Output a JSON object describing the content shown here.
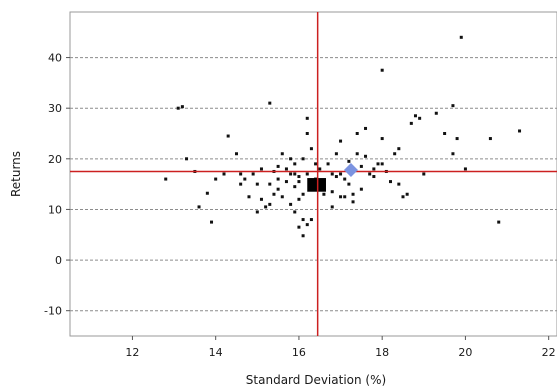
{
  "chart_data": {
    "type": "scatter",
    "title": "",
    "xlabel": "Standard Deviation (%)",
    "ylabel": "Returns",
    "xlim": [
      10.5,
      22.2
    ],
    "ylim": [
      -15,
      49
    ],
    "x_ticks": [
      12,
      14,
      16,
      18,
      20,
      22
    ],
    "y_ticks": [
      -10,
      0,
      10,
      20,
      30,
      40
    ],
    "grid": "horizontal-dashed",
    "legend": "none",
    "crosshair": {
      "x": 16.45,
      "y": 17.5,
      "color": "#cc2020"
    },
    "highlight_point": {
      "x": 17.25,
      "y": 17.8,
      "color": "#7b93e0"
    },
    "cluster_block": {
      "x_range": [
        16.2,
        16.65
      ],
      "y_range": [
        13.5,
        16.2
      ]
    },
    "series": [
      {
        "points": [
          [
            12.8,
            16
          ],
          [
            13.1,
            30
          ],
          [
            13.2,
            30.3
          ],
          [
            13.3,
            20
          ],
          [
            13.5,
            17.5
          ],
          [
            13.6,
            10.5
          ],
          [
            13.8,
            13.2
          ],
          [
            13.9,
            7.5
          ],
          [
            14.2,
            17
          ],
          [
            14.3,
            24.5
          ],
          [
            14.5,
            21
          ],
          [
            14.6,
            17
          ],
          [
            14.7,
            16
          ],
          [
            14.8,
            12.5
          ],
          [
            14.9,
            17
          ],
          [
            15.0,
            9.5
          ],
          [
            15.0,
            15
          ],
          [
            15.1,
            12
          ],
          [
            15.1,
            18
          ],
          [
            15.2,
            10.5
          ],
          [
            15.3,
            11
          ],
          [
            15.3,
            31
          ],
          [
            15.4,
            13
          ],
          [
            15.4,
            17.5
          ],
          [
            15.5,
            16
          ],
          [
            15.5,
            14
          ],
          [
            15.6,
            21
          ],
          [
            15.6,
            12.5
          ],
          [
            15.7,
            18
          ],
          [
            15.7,
            15.5
          ],
          [
            15.8,
            11
          ],
          [
            15.8,
            17
          ],
          [
            15.9,
            9.5
          ],
          [
            15.9,
            14.5
          ],
          [
            15.9,
            19
          ],
          [
            16.0,
            6.5
          ],
          [
            16.0,
            12
          ],
          [
            16.0,
            15.5
          ],
          [
            16.0,
            16.5
          ],
          [
            16.1,
            20
          ],
          [
            16.1,
            13
          ],
          [
            16.1,
            8
          ],
          [
            16.1,
            4.8
          ],
          [
            16.2,
            28
          ],
          [
            16.2,
            25
          ],
          [
            16.2,
            17
          ],
          [
            16.3,
            14
          ],
          [
            16.3,
            8
          ],
          [
            16.4,
            19
          ],
          [
            16.4,
            16
          ],
          [
            16.5,
            18
          ],
          [
            16.6,
            13
          ],
          [
            16.7,
            19
          ],
          [
            16.8,
            10.5
          ],
          [
            16.8,
            17
          ],
          [
            16.9,
            21
          ],
          [
            17.0,
            17
          ],
          [
            17.0,
            23.5
          ],
          [
            17.1,
            12.5
          ],
          [
            17.1,
            16
          ],
          [
            17.2,
            15
          ],
          [
            17.2,
            19.5
          ],
          [
            17.3,
            11.5
          ],
          [
            17.4,
            21
          ],
          [
            17.4,
            25
          ],
          [
            17.5,
            18.5
          ],
          [
            17.5,
            14
          ],
          [
            17.6,
            20.5
          ],
          [
            17.6,
            26
          ],
          [
            17.7,
            17
          ],
          [
            17.8,
            16.5
          ],
          [
            17.9,
            19
          ],
          [
            18.0,
            37.5
          ],
          [
            18.0,
            24
          ],
          [
            18.0,
            19
          ],
          [
            18.2,
            15.5
          ],
          [
            18.3,
            21
          ],
          [
            18.4,
            22
          ],
          [
            18.5,
            12.5
          ],
          [
            18.6,
            13
          ],
          [
            18.7,
            27
          ],
          [
            18.8,
            28.5
          ],
          [
            18.9,
            28
          ],
          [
            19.0,
            17
          ],
          [
            19.3,
            29
          ],
          [
            19.5,
            25
          ],
          [
            19.7,
            21
          ],
          [
            19.8,
            24
          ],
          [
            20.0,
            18
          ],
          [
            19.7,
            30.5
          ],
          [
            19.9,
            44
          ],
          [
            20.6,
            24
          ],
          [
            20.8,
            7.5
          ],
          [
            21.3,
            25.5
          ],
          [
            14.0,
            16
          ],
          [
            15.8,
            20
          ],
          [
            16.8,
            13.5
          ],
          [
            17.0,
            12.5
          ],
          [
            15.3,
            15
          ],
          [
            16.2,
            7
          ],
          [
            15.5,
            18.5
          ],
          [
            14.6,
            15
          ],
          [
            16.9,
            16.5
          ],
          [
            17.8,
            18
          ],
          [
            18.1,
            17.5
          ],
          [
            15.9,
            17
          ],
          [
            16.3,
            22
          ],
          [
            17.3,
            13
          ],
          [
            18.4,
            15
          ]
        ]
      }
    ]
  }
}
